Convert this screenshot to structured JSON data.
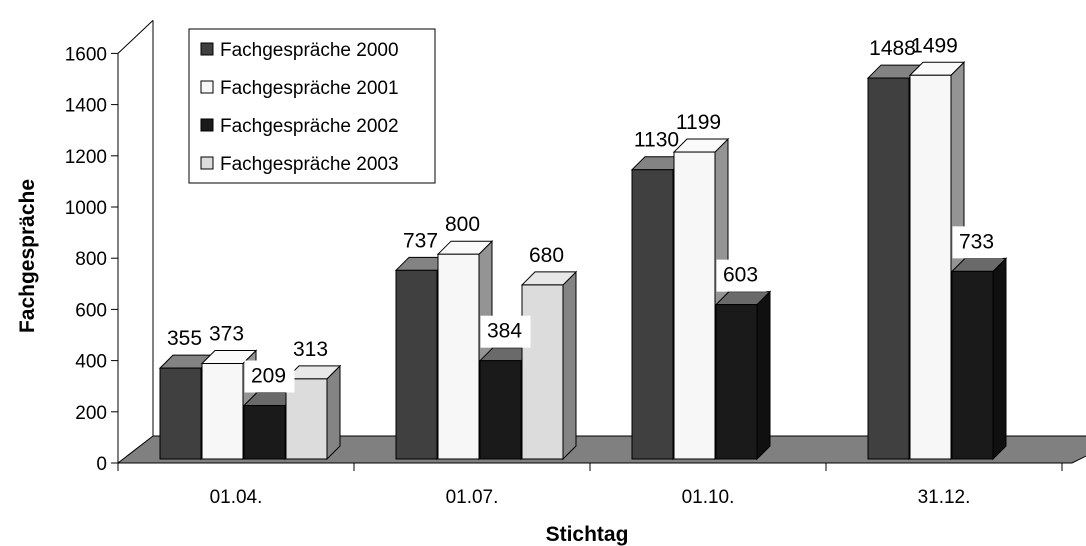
{
  "chart_data": {
    "type": "bar",
    "title": "",
    "xlabel": "Stichtag",
    "ylabel": "Fachgespräche",
    "ylim": [
      0,
      1600
    ],
    "yticks": [
      0,
      200,
      400,
      600,
      800,
      1000,
      1200,
      1400,
      1600
    ],
    "categories": [
      "01.04.",
      "01.07.",
      "01.10.",
      "31.12."
    ],
    "series": [
      {
        "name": "Fachgespräche 2000",
        "values": [
          355,
          737,
          1130,
          1488
        ]
      },
      {
        "name": "Fachgespräche 2001",
        "values": [
          373,
          800,
          1199,
          1499
        ]
      },
      {
        "name": "Fachgespräche 2002",
        "values": [
          209,
          384,
          603,
          733
        ]
      },
      {
        "name": "Fachgespräche 2003",
        "values": [
          313,
          680,
          null,
          null
        ]
      }
    ],
    "legend_position": "top-left",
    "grid": false,
    "three_d": true,
    "colors": [
      "#404040",
      "#f7f7f7",
      "#1a1a1a",
      "#dcdcdc"
    ],
    "floor_color": "#808080"
  }
}
